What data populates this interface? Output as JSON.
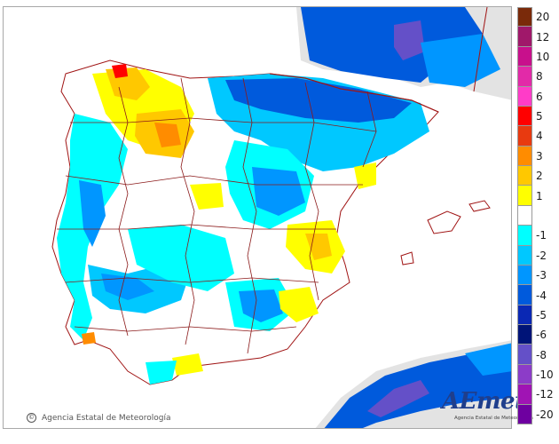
{
  "map": {
    "sea_color": "#ffffff",
    "foreign_land_color": "#e3e3e3",
    "border_color": "#8b1a1a",
    "coast_color": "#a01414"
  },
  "credit": {
    "symbol": "©",
    "text": "Agencia Estatal de Meteorología"
  },
  "logo": {
    "word": "AEmet",
    "subtitle": "Agencia Estatal de Meteorología"
  },
  "legend": {
    "items": [
      {
        "label": "20",
        "color": "#7a2a0a"
      },
      {
        "label": "12",
        "color": "#a0186a"
      },
      {
        "label": "10",
        "color": "#c8108c"
      },
      {
        "label": "8",
        "color": "#e22aa8"
      },
      {
        "label": "6",
        "color": "#ff3cc8"
      },
      {
        "label": "5",
        "color": "#ff0000"
      },
      {
        "label": "4",
        "color": "#e83a10"
      },
      {
        "label": "3",
        "color": "#ff8c00"
      },
      {
        "label": "2",
        "color": "#ffc800"
      },
      {
        "label": "1",
        "color": "#ffff00"
      },
      {
        "label": "",
        "color": "#ffffff"
      },
      {
        "label": "-1",
        "color": "#00ffff"
      },
      {
        "label": "-2",
        "color": "#00c8ff"
      },
      {
        "label": "-3",
        "color": "#0096ff"
      },
      {
        "label": "-4",
        "color": "#005adc"
      },
      {
        "label": "-5",
        "color": "#0a28b4"
      },
      {
        "label": "-6",
        "color": "#001478"
      },
      {
        "label": "-8",
        "color": "#6450c8"
      },
      {
        "label": "-10",
        "color": "#8c3cc8"
      },
      {
        "label": "-12",
        "color": "#a014b4"
      },
      {
        "label": "-20",
        "color": "#6e00a0"
      }
    ]
  }
}
